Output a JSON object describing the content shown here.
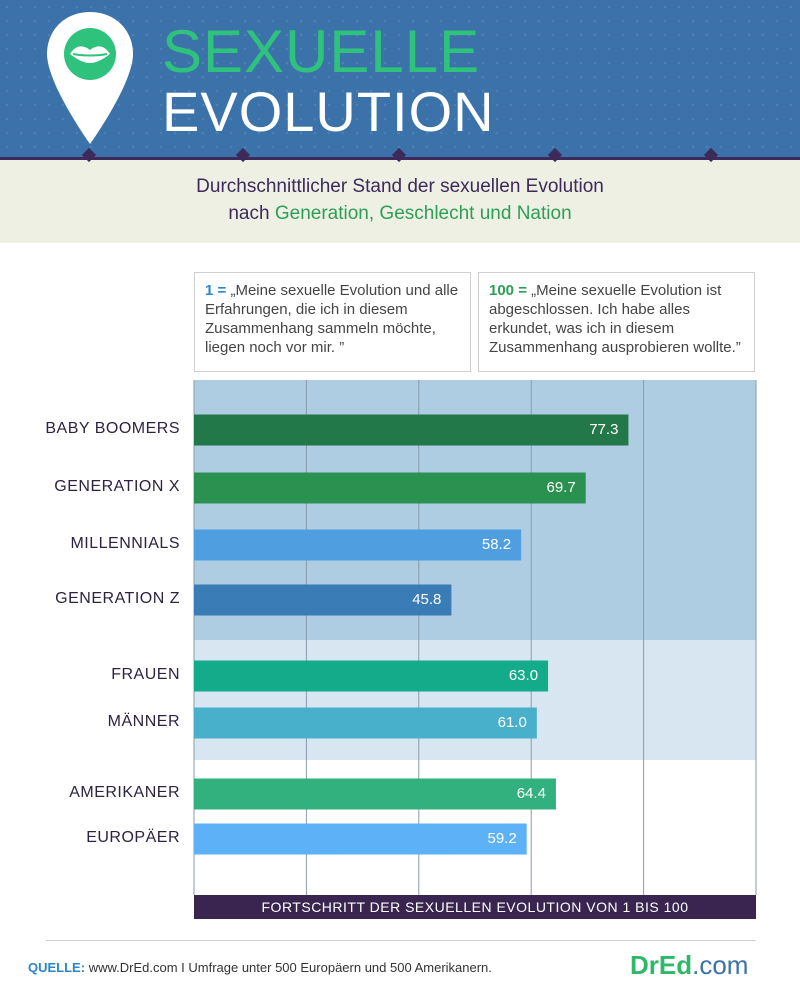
{
  "header": {
    "title_line1": "SEXUELLE",
    "title_line2": "EVOLUTION",
    "pin_icon": "kiss-lips-icon"
  },
  "subtitle": {
    "line1": "Durchschnittlicher Stand der sexuellen Evolution",
    "line2_prefix": "nach ",
    "line2_highlight": "Generation, Geschlecht und Nation"
  },
  "legend": {
    "left_num": "1 =",
    "left_text": "„Meine sexuelle Evolution und alle Erfahrungen, die ich in diesem Zusammenhang sammeln möchte, liegen noch vor mir. ”",
    "right_num": "100 =",
    "right_text": "„Meine sexuelle Evolution ist abgeschlossen. Ich habe alles erkundet, was ich in diesem Zusammenhang ausprobieren wollte.”"
  },
  "chart_data": {
    "type": "bar",
    "orientation": "horizontal",
    "xlabel": "FORTSCHRITT DER SEXUELLEN EVOLUTION VON 1 BIS 100",
    "xlim": [
      0,
      100
    ],
    "grid": true,
    "groups": [
      {
        "name": "Generation",
        "background": "#aecde3"
      },
      {
        "name": "Geschlecht",
        "background": "#d7e6f1"
      },
      {
        "name": "Nation",
        "background": "#ffffff"
      }
    ],
    "categories": [
      "BABY BOOMERS",
      "GENERATION X",
      "MILLENNIALS",
      "GENERATION Z",
      "FRAUEN",
      "MÄNNER",
      "AMERIKANER",
      "EUROPÄER"
    ],
    "values": [
      77.3,
      69.7,
      58.2,
      45.8,
      63.0,
      61.0,
      64.4,
      59.2
    ],
    "value_labels": [
      "77.3",
      "69.7",
      "58.2",
      "45.8",
      "63.0",
      "61.0",
      "64.4",
      "59.2"
    ],
    "group_index": [
      0,
      0,
      0,
      0,
      1,
      1,
      2,
      2
    ],
    "colors": [
      "#23784a",
      "#2a9150",
      "#4f9fe0",
      "#3a7cb5",
      "#13ab8a",
      "#49b0cc",
      "#32b07e",
      "#5cb1f7"
    ]
  },
  "footer": {
    "source_label": "QUELLE:",
    "source_text": "www.DrEd.com I Umfrage unter 500 Europäern und 500 Amerikanern.",
    "logo_main": "DrEd",
    "logo_tld": ".com"
  }
}
